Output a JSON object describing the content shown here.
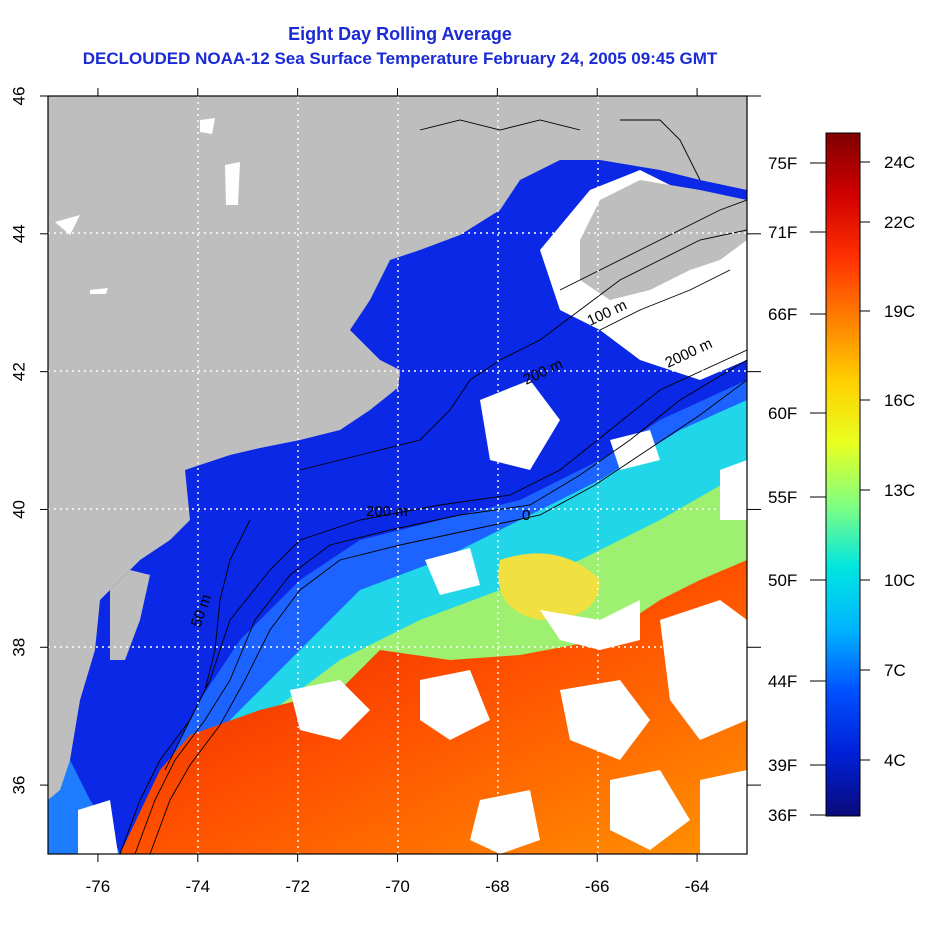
{
  "title": "Eight Day Rolling Average",
  "subtitle": "DECLOUDED NOAA-12 Sea Surface Temperature February 24, 2005 09:45 GMT",
  "map": {
    "lon_range": [
      -77,
      -63
    ],
    "lat_range": [
      35,
      46
    ],
    "lon_ticks": [
      "-76",
      "-74",
      "-72",
      "-70",
      "-68",
      "-66",
      "-64"
    ],
    "lat_ticks": [
      "36",
      "38",
      "40",
      "42",
      "44",
      "46"
    ],
    "colors": {
      "land": "#bebebe",
      "cloud": "#ffffff",
      "grid": "#ffffff",
      "contour": "#000000"
    },
    "contour_labels": [
      "50 m",
      "200 m",
      "100 m",
      "200 m",
      "2000 m",
      "0"
    ]
  },
  "colorbar": {
    "celsius_labels": [
      "24C",
      "22C",
      "19C",
      "16C",
      "13C",
      "10C",
      "7C",
      "4C"
    ],
    "fahrenheit_labels": [
      "75F",
      "71F",
      "66F",
      "60F",
      "55F",
      "50F",
      "44F",
      "39F",
      "36F"
    ],
    "gradient": [
      "#0a0a7a",
      "#0020d8",
      "#0050ff",
      "#00b4ff",
      "#00e6e0",
      "#80ff80",
      "#e8ff20",
      "#ffd000",
      "#ff8000",
      "#ff3000",
      "#d00000",
      "#800000"
    ]
  }
}
